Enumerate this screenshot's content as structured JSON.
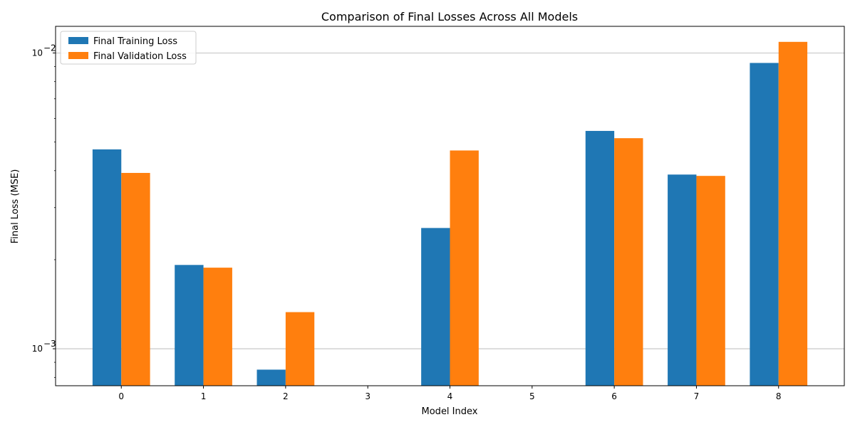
{
  "chart_data": {
    "type": "bar",
    "title": "Comparison of Final Losses Across All Models",
    "xlabel": "Model Index",
    "ylabel": "Final Loss (MSE)",
    "yscale": "log",
    "ylim": [
      0.00075,
      0.0123
    ],
    "y_ticks": [
      {
        "value": 0.001,
        "base": "10",
        "exp": "−3"
      },
      {
        "value": 0.01,
        "base": "10",
        "exp": "−2"
      }
    ],
    "grid": "horizontal-major",
    "legend_position": "top-left",
    "categories": [
      "0",
      "1",
      "2",
      "3",
      "4",
      "5",
      "6",
      "7",
      "8"
    ],
    "series": [
      {
        "name": "Final Training Loss",
        "color": "#1f77b4",
        "values": [
          0.00472,
          0.00192,
          0.00085,
          null,
          0.00256,
          null,
          0.00545,
          0.00388,
          0.00925
        ]
      },
      {
        "name": "Final Validation Loss",
        "color": "#ff7f0e",
        "values": [
          0.00393,
          0.00188,
          0.00133,
          null,
          0.00468,
          null,
          0.00515,
          0.00384,
          0.0109
        ]
      }
    ]
  }
}
